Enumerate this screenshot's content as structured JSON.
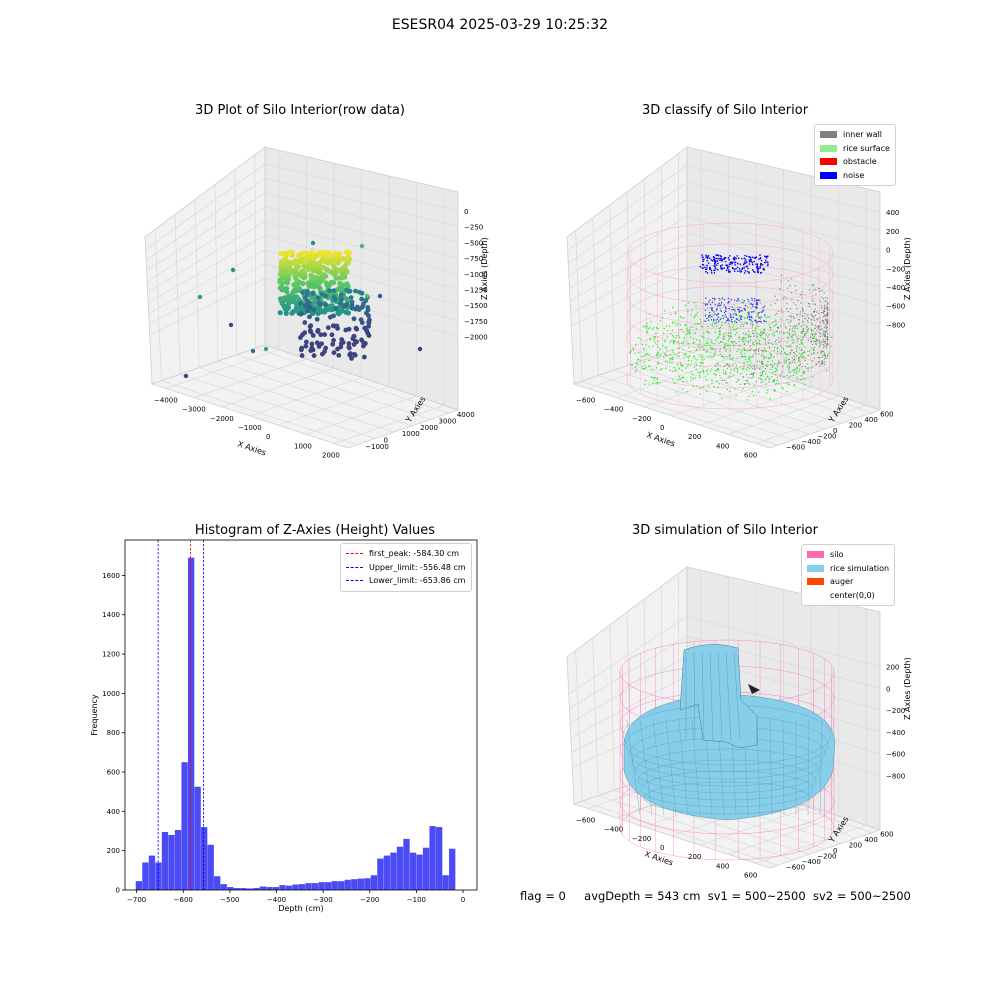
{
  "figure": {
    "suptitle": "ESESR04 2025-03-29 10:25:32",
    "footer": {
      "flag": "flag = 0",
      "avg_depth": "avgDepth = 543 cm",
      "sv1": "sv1 = 500~2500",
      "sv2": "sv2 = 500~2500"
    }
  },
  "chart_data": [
    {
      "type": "scatter",
      "projection": "3d",
      "title": "3D Plot of Silo Interior(row data)",
      "xlabel": "X Axies",
      "ylabel": "Y Axies",
      "zlabel": "Z Axies (Depth)",
      "x_ticks": [
        "−4000",
        "−3000",
        "−2000",
        "−1000",
        "0",
        "1000",
        "2000"
      ],
      "y_ticks": [
        "−1000",
        "0",
        "1000",
        "2000",
        "3000",
        "4000"
      ],
      "z_ticks": [
        "0",
        "−250",
        "−500",
        "−750",
        "−1000",
        "−1250",
        "−1500",
        "−1750",
        "−2000"
      ],
      "colormap": "viridis",
      "grid": true
    },
    {
      "type": "scatter",
      "projection": "3d",
      "title": "3D classify of Silo Interior",
      "xlabel": "X Axies",
      "ylabel": "Y Axies",
      "zlabel": "Z Axies (Depth)",
      "x_ticks": [
        "−600",
        "−400",
        "−200",
        "0",
        "200",
        "400",
        "600"
      ],
      "y_ticks": [
        "−600",
        "−400",
        "−200",
        "0",
        "200",
        "400",
        "600"
      ],
      "z_ticks": [
        "400",
        "200",
        "0",
        "−200",
        "−400",
        "−600",
        "−800"
      ],
      "legend": [
        {
          "label": "inner wall",
          "color": "#808080"
        },
        {
          "label": "rice surface",
          "color": "#90ee90"
        },
        {
          "label": "obstacle",
          "color": "#ff0000"
        },
        {
          "label": "noise",
          "color": "#0000ff"
        }
      ],
      "legend_position": "upper right",
      "grid": true
    },
    {
      "type": "bar",
      "title": "Histogram of Z-Axies (Height) Values",
      "xlabel": "Depth (cm)",
      "ylabel": "Frequency",
      "xlim": [
        -725,
        30
      ],
      "ylim": [
        0,
        1780
      ],
      "x_ticks": [
        -700,
        -600,
        -500,
        -400,
        -300,
        -200,
        -100,
        0
      ],
      "x_tick_labels": [
        "−700",
        "−600",
        "−500",
        "−400",
        "−300",
        "−200",
        "−100",
        "0"
      ],
      "y_ticks": [
        0,
        200,
        400,
        600,
        800,
        1000,
        1200,
        1400,
        1600
      ],
      "y_tick_labels": [
        "0",
        "200",
        "400",
        "600",
        "800",
        "1000",
        "1200",
        "1400",
        "1600"
      ],
      "bin_start": -702,
      "bin_width": 14,
      "values": [
        45,
        140,
        175,
        140,
        295,
        280,
        305,
        650,
        1690,
        525,
        320,
        230,
        70,
        30,
        15,
        10,
        10,
        8,
        10,
        18,
        15,
        15,
        25,
        22,
        28,
        30,
        35,
        35,
        40,
        40,
        45,
        45,
        52,
        55,
        58,
        60,
        75,
        160,
        175,
        190,
        220,
        260,
        190,
        180,
        215,
        325,
        320,
        75,
        210
      ],
      "bar_color": "#4b4bf5",
      "lines": [
        {
          "label": "first_peak: -584.30 cm",
          "x": -584.3,
          "color": "#ff0000"
        },
        {
          "label": "Upper_limit: -556.48 cm",
          "x": -556.48,
          "color": "#0000ff"
        },
        {
          "label": "Lower_limit: -653.86 cm",
          "x": -653.86,
          "color": "#0000ff"
        }
      ],
      "legend_position": "upper right",
      "grid": false
    },
    {
      "type": "surface",
      "projection": "3d",
      "title": "3D simulation of Silo Interior",
      "xlabel": "X Axies",
      "ylabel": "Y Axies",
      "zlabel": "Z Axies (Depth)",
      "x_ticks": [
        "−600",
        "−400",
        "−200",
        "0",
        "200",
        "400",
        "600"
      ],
      "y_ticks": [
        "−600",
        "−400",
        "−200",
        "0",
        "200",
        "400",
        "600"
      ],
      "z_ticks": [
        "200",
        "0",
        "−200",
        "−400",
        "−600",
        "−800"
      ],
      "legend": [
        {
          "label": "silo",
          "color": "#ff69b4"
        },
        {
          "label": "rice simulation",
          "color": "#87ceeb"
        },
        {
          "label": "auger",
          "color": "#ff4500"
        },
        {
          "label": "center(0,0)",
          "color": ""
        }
      ],
      "legend_position": "upper right",
      "grid": true
    }
  ]
}
